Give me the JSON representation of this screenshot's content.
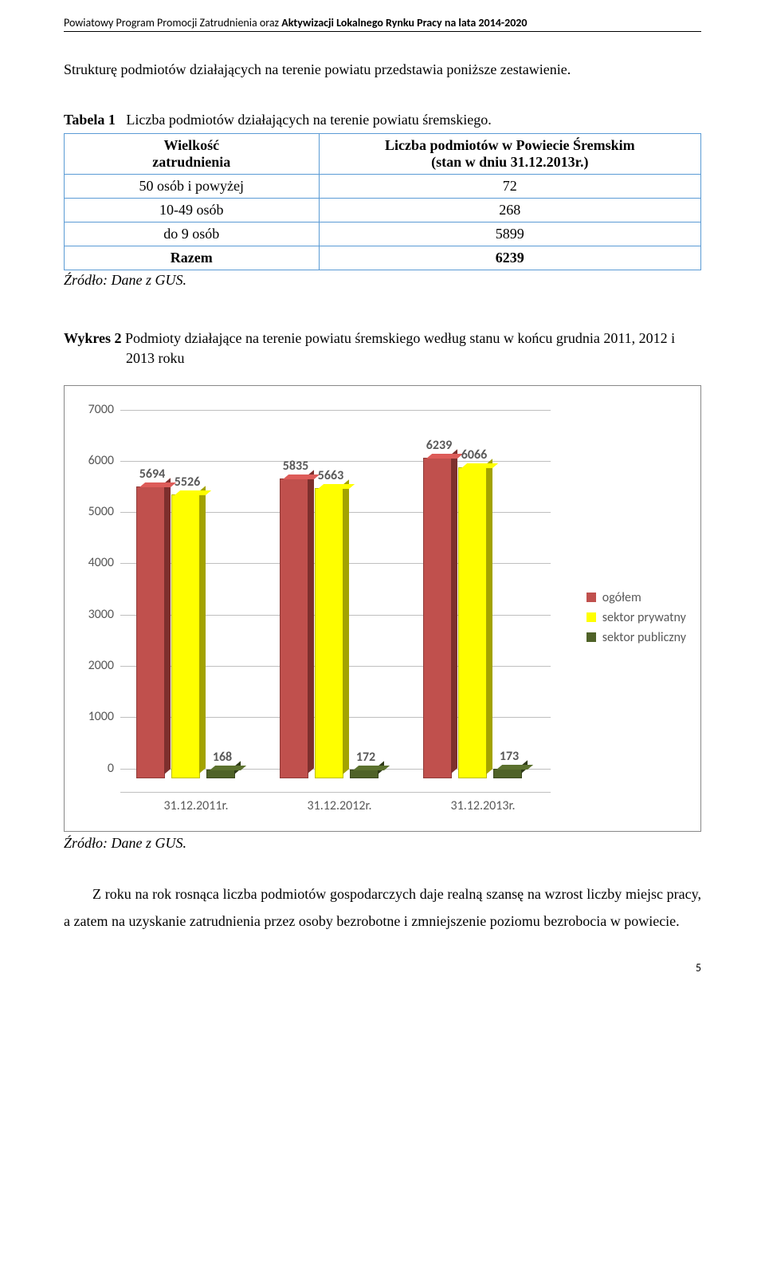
{
  "header": {
    "prefix": "Powiatowy Program Promocji Zatrudnienia oraz  ",
    "bold": "Aktywizacji Lokalnego Rynku Pracy na lata 2014-2020"
  },
  "intro": "Strukturę podmiotów działających na terenie powiatu przedstawia poniższe zestawienie.",
  "table": {
    "caption_prefix": "Tabela 1",
    "caption_text": "Liczba podmiotów działających na terenie powiatu śremskiego.",
    "col_left_line1": "Wielkość",
    "col_left_line2": "zatrudnienia",
    "col_right_line1": "Liczba podmiotów w Powiecie Śremskim",
    "col_right_line2": "(stan w dniu 31.12.2013r.)",
    "rows": [
      {
        "label": "50 osób i powyżej",
        "value": "72"
      },
      {
        "label": "10-49 osób",
        "value": "268"
      },
      {
        "label": "do 9 osób",
        "value": "5899"
      }
    ],
    "total_label": "Razem",
    "total_value": "6239"
  },
  "source": "Źródło: Dane z GUS.",
  "chart_caption_prefix": "Wykres 2",
  "chart_caption_text": "Podmioty działające na terenie powiatu śremskiego według stanu w końcu grudnia  2011, 2012 i 2013 roku",
  "chart": {
    "ymax": 7000,
    "ytick_step": 1000,
    "categories": [
      "31.12.2011r.",
      "31.12.2012r.",
      "31.12.2013r."
    ],
    "series": [
      {
        "name": "ogółem",
        "color": "#c0504d",
        "side": "#9c3b38",
        "values": [
          5694,
          5835,
          6239
        ]
      },
      {
        "name": "sektor prywatny",
        "color": "#ffff00",
        "side": "#cccc00",
        "values": [
          5526,
          5663,
          6066
        ]
      },
      {
        "name": "sektor publiczny",
        "color": "#4f6228",
        "side": "#3a481d",
        "values": [
          168,
          172,
          173
        ]
      }
    ]
  },
  "closing": "Z roku na rok rosnąca liczba podmiotów gospodarczych daje realną szansę na wzrost liczby miejsc pracy, a zatem na uzyskanie zatrudnienia przez osoby bezrobotne i zmniejszenie poziomu bezrobocia w powiecie.",
  "page_number": "5"
}
